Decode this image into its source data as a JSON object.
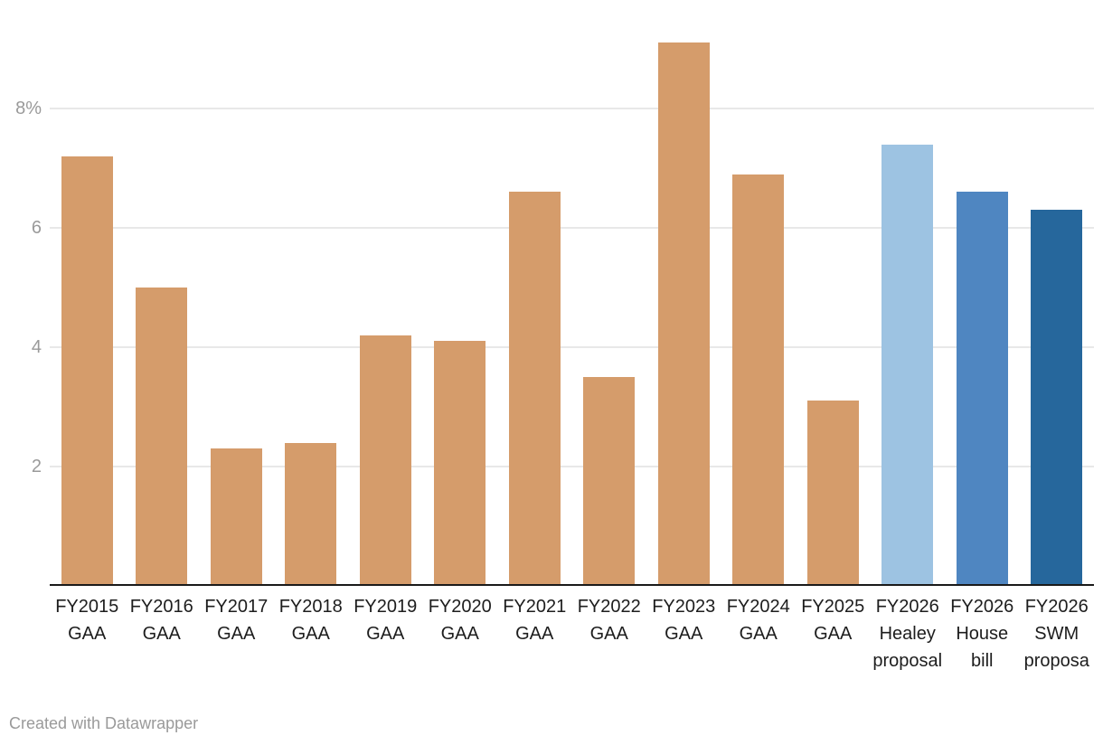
{
  "chart_data": {
    "type": "bar",
    "title": "",
    "xlabel": "",
    "ylabel": "",
    "grid": true,
    "legend": "none",
    "ylim": [
      0,
      9.3
    ],
    "yticks": [
      {
        "value": 2,
        "label": "2"
      },
      {
        "value": 4,
        "label": "4"
      },
      {
        "value": 6,
        "label": "6"
      },
      {
        "value": 8,
        "label": "8%"
      }
    ],
    "categories": [
      [
        "FY2015",
        "GAA"
      ],
      [
        "FY2016",
        "GAA"
      ],
      [
        "FY2017",
        "GAA"
      ],
      [
        "FY2018",
        "GAA"
      ],
      [
        "FY2019",
        "GAA"
      ],
      [
        "FY2020",
        "GAA"
      ],
      [
        "FY2021",
        "GAA"
      ],
      [
        "FY2022",
        "GAA"
      ],
      [
        "FY2023",
        "GAA"
      ],
      [
        "FY2024",
        "GAA"
      ],
      [
        "FY2025",
        "GAA"
      ],
      [
        "FY2026",
        "Healey",
        "proposal"
      ],
      [
        "FY2026",
        "House",
        "bill"
      ],
      [
        "FY2026",
        "SWM",
        "proposa"
      ]
    ],
    "values": [
      7.2,
      5.0,
      2.3,
      2.4,
      4.2,
      4.1,
      6.6,
      3.5,
      9.1,
      6.9,
      3.1,
      7.4,
      6.6,
      6.3
    ],
    "bar_colors": [
      "#d59c6b",
      "#d59c6b",
      "#d59c6b",
      "#d59c6b",
      "#d59c6b",
      "#d59c6b",
      "#d59c6b",
      "#d59c6b",
      "#d59c6b",
      "#d59c6b",
      "#d59c6b",
      "#9dc3e2",
      "#4f86c1",
      "#26679c"
    ],
    "palette": {
      "gaa_bar": "#d59c6b",
      "healey_proposal_bar": "#9dc3e2",
      "house_bill_bar": "#4f86c1",
      "swm_proposal_bar": "#26679c",
      "gridline": "#e8e8e8",
      "axis_line": "#1a1a1a",
      "tick_text": "#9a9a9a",
      "label_text": "#1d1d1d"
    }
  },
  "footer": {
    "attribution": "Created with Datawrapper"
  }
}
